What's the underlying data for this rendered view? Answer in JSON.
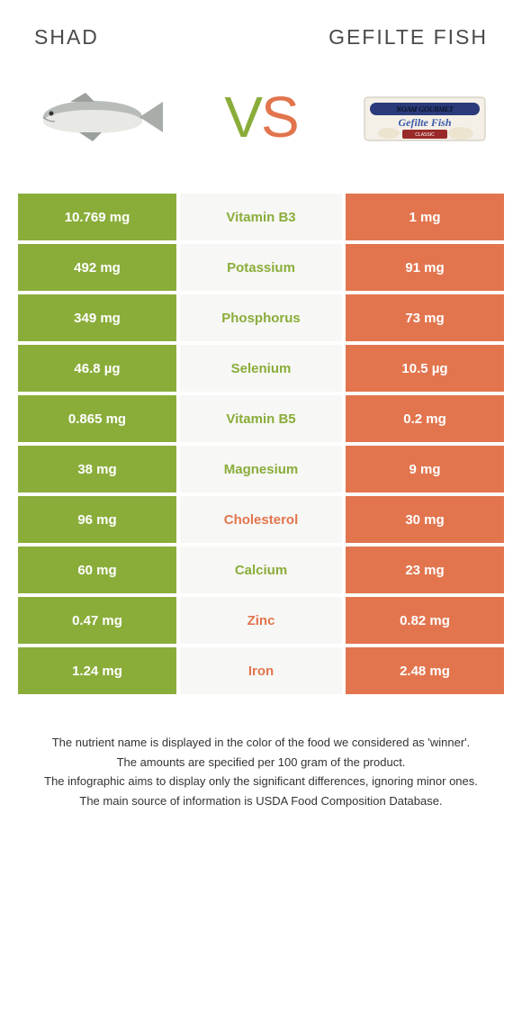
{
  "colors": {
    "left": "#8aad3a",
    "right": "#e2754e",
    "mid_bg": "#f7f7f5",
    "text_dark": "#4a4a4a",
    "body_text": "#333333"
  },
  "header": {
    "left_title": "Shad",
    "right_title": "Gefilte fish",
    "vs_v": "V",
    "vs_s": "S"
  },
  "rows": [
    {
      "left": "10.769 mg",
      "label": "Vitamin B3",
      "right": "1 mg",
      "winner": "left"
    },
    {
      "left": "492 mg",
      "label": "Potassium",
      "right": "91 mg",
      "winner": "left"
    },
    {
      "left": "349 mg",
      "label": "Phosphorus",
      "right": "73 mg",
      "winner": "left"
    },
    {
      "left": "46.8 µg",
      "label": "Selenium",
      "right": "10.5 µg",
      "winner": "left"
    },
    {
      "left": "0.865 mg",
      "label": "Vitamin B5",
      "right": "0.2 mg",
      "winner": "left"
    },
    {
      "left": "38 mg",
      "label": "Magnesium",
      "right": "9 mg",
      "winner": "left"
    },
    {
      "left": "96 mg",
      "label": "Cholesterol",
      "right": "30 mg",
      "winner": "right"
    },
    {
      "left": "60 mg",
      "label": "Calcium",
      "right": "23 mg",
      "winner": "left"
    },
    {
      "left": "0.47 mg",
      "label": "Zinc",
      "right": "0.82 mg",
      "winner": "right"
    },
    {
      "left": "1.24 mg",
      "label": "Iron",
      "right": "2.48 mg",
      "winner": "right"
    }
  ],
  "footer": {
    "line1": "The nutrient name is displayed in the color of the food we considered as 'winner'.",
    "line2": "The amounts are specified per 100 gram of the product.",
    "line3": "The infographic aims to display only the significant differences, ignoring minor ones.",
    "line4": "The main source of information is USDA Food Composition Database."
  }
}
